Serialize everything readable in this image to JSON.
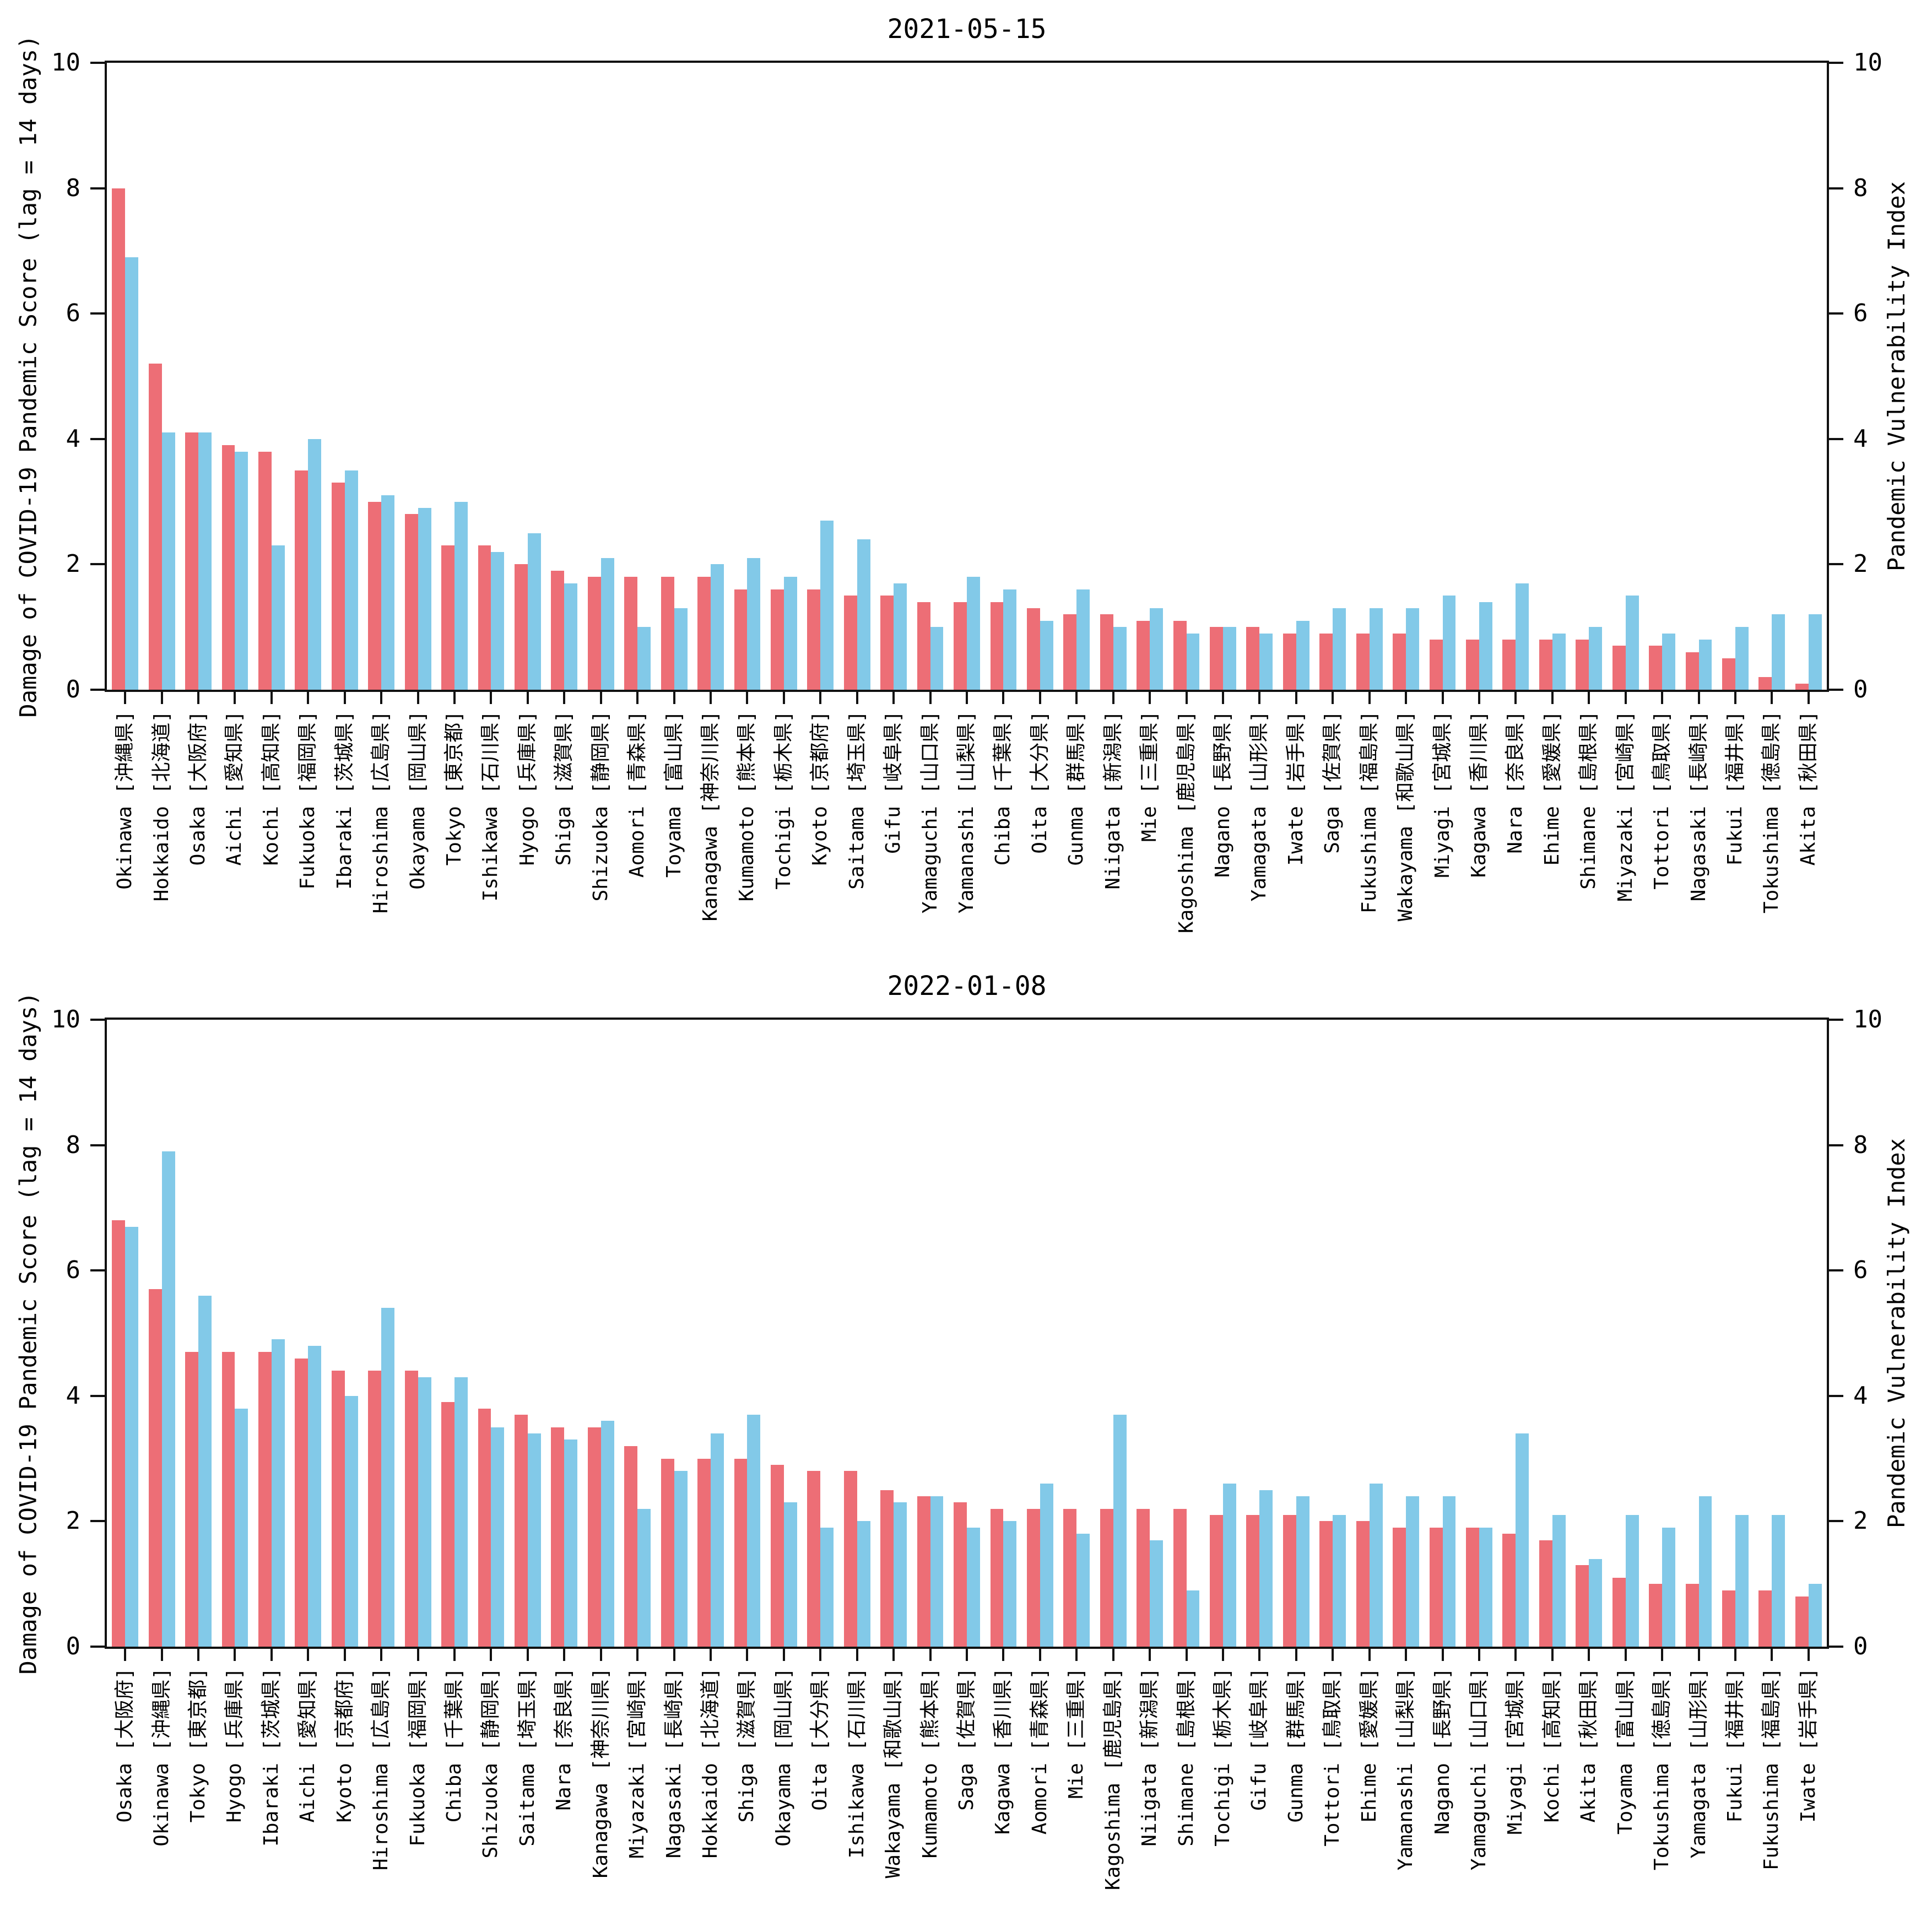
{
  "chart_data": [
    {
      "type": "bar",
      "title": "2021-05-15",
      "ylabel_left": "Damage of COVID-19 Pandemic Score (lag = 14 days)",
      "ylabel_right": "Pandemic Vulnerability Index",
      "ylim": [
        0,
        10
      ],
      "yticks": [
        0,
        2,
        4,
        6,
        8,
        10
      ],
      "grid": false,
      "legend": "none",
      "categories": [
        "Okinawa [沖縄県]",
        "Hokkaido [北海道]",
        "Osaka [大阪府]",
        "Aichi [愛知県]",
        "Kochi [高知県]",
        "Fukuoka [福岡県]",
        "Ibaraki [茨城県]",
        "Hiroshima [広島県]",
        "Okayama [岡山県]",
        "Tokyo [東京都]",
        "Ishikawa [石川県]",
        "Hyogo [兵庫県]",
        "Shiga [滋賀県]",
        "Shizuoka [静岡県]",
        "Aomori [青森県]",
        "Toyama [富山県]",
        "Kanagawa [神奈川県]",
        "Kumamoto [熊本県]",
        "Tochigi [栃木県]",
        "Kyoto [京都府]",
        "Saitama [埼玉県]",
        "Gifu [岐阜県]",
        "Yamaguchi [山口県]",
        "Yamanashi [山梨県]",
        "Chiba [千葉県]",
        "Oita [大分県]",
        "Gunma [群馬県]",
        "Niigata [新潟県]",
        "Mie [三重県]",
        "Kagoshima [鹿児島県]",
        "Nagano [長野県]",
        "Yamagata [山形県]",
        "Iwate [岩手県]",
        "Saga [佐賀県]",
        "Fukushima [福島県]",
        "Wakayama [和歌山県]",
        "Miyagi [宮城県]",
        "Kagawa [香川県]",
        "Nara [奈良県]",
        "Ehime [愛媛県]",
        "Shimane [島根県]",
        "Miyazaki [宮崎県]",
        "Tottori [鳥取県]",
        "Nagasaki [長崎県]",
        "Fukui [福井県]",
        "Tokushima [徳島県]",
        "Akita [秋田県]"
      ],
      "series": [
        {
          "name": "damage-score",
          "color": "#ed6e76",
          "values": [
            8.0,
            5.2,
            4.1,
            3.9,
            3.8,
            3.5,
            3.3,
            3.0,
            2.8,
            2.3,
            2.3,
            2.0,
            1.9,
            1.8,
            1.8,
            1.8,
            1.8,
            1.6,
            1.6,
            1.6,
            1.5,
            1.5,
            1.4,
            1.4,
            1.4,
            1.3,
            1.2,
            1.2,
            1.1,
            1.1,
            1.0,
            1.0,
            0.9,
            0.9,
            0.9,
            0.9,
            0.8,
            0.8,
            0.8,
            0.8,
            0.8,
            0.7,
            0.7,
            0.6,
            0.5,
            0.2,
            0.1
          ]
        },
        {
          "name": "vulnerability-index",
          "color": "#82c9e8",
          "values": [
            6.9,
            4.1,
            4.1,
            3.8,
            2.3,
            4.0,
            3.5,
            3.1,
            2.9,
            3.0,
            2.2,
            2.5,
            1.7,
            2.1,
            1.0,
            1.3,
            2.0,
            2.1,
            1.8,
            2.7,
            2.4,
            1.7,
            1.0,
            1.8,
            1.6,
            1.1,
            1.6,
            1.0,
            1.3,
            0.9,
            1.0,
            0.9,
            1.1,
            1.3,
            1.3,
            1.3,
            1.5,
            1.4,
            1.7,
            0.9,
            1.0,
            1.5,
            0.9,
            0.8,
            1.0,
            1.2,
            1.2
          ]
        }
      ]
    },
    {
      "type": "bar",
      "title": "2022-01-08",
      "ylabel_left": "Damage of COVID-19 Pandemic Score (lag = 14 days)",
      "ylabel_right": "Pandemic Vulnerability Index",
      "ylim": [
        0,
        10
      ],
      "yticks": [
        0,
        2,
        4,
        6,
        8,
        10
      ],
      "grid": false,
      "legend": "none",
      "categories": [
        "Osaka [大阪府]",
        "Okinawa [沖縄県]",
        "Tokyo [東京都]",
        "Hyogo [兵庫県]",
        "Ibaraki [茨城県]",
        "Aichi [愛知県]",
        "Kyoto [京都府]",
        "Hiroshima [広島県]",
        "Fukuoka [福岡県]",
        "Chiba [千葉県]",
        "Shizuoka [静岡県]",
        "Saitama [埼玉県]",
        "Nara [奈良県]",
        "Kanagawa [神奈川県]",
        "Miyazaki [宮崎県]",
        "Nagasaki [長崎県]",
        "Hokkaido [北海道]",
        "Shiga [滋賀県]",
        "Okayama [岡山県]",
        "Oita [大分県]",
        "Ishikawa [石川県]",
        "Wakayama [和歌山県]",
        "Kumamoto [熊本県]",
        "Saga [佐賀県]",
        "Kagawa [香川県]",
        "Aomori [青森県]",
        "Mie [三重県]",
        "Kagoshima [鹿児島県]",
        "Niigata [新潟県]",
        "Shimane [島根県]",
        "Tochigi [栃木県]",
        "Gifu [岐阜県]",
        "Gunma [群馬県]",
        "Tottori [鳥取県]",
        "Ehime [愛媛県]",
        "Yamanashi [山梨県]",
        "Nagano [長野県]",
        "Yamaguchi [山口県]",
        "Miyagi [宮城県]",
        "Kochi [高知県]",
        "Akita [秋田県]",
        "Toyama [富山県]",
        "Tokushima [徳島県]",
        "Yamagata [山形県]",
        "Fukui [福井県]",
        "Fukushima [福島県]",
        "Iwate [岩手県]"
      ],
      "series": [
        {
          "name": "damage-score",
          "color": "#ed6e76",
          "values": [
            6.8,
            5.7,
            4.7,
            4.7,
            4.7,
            4.6,
            4.4,
            4.4,
            4.4,
            3.9,
            3.8,
            3.7,
            3.5,
            3.5,
            3.2,
            3.0,
            3.0,
            3.0,
            2.9,
            2.8,
            2.8,
            2.5,
            2.4,
            2.3,
            2.2,
            2.2,
            2.2,
            2.2,
            2.2,
            2.2,
            2.1,
            2.1,
            2.1,
            2.0,
            2.0,
            1.9,
            1.9,
            1.9,
            1.8,
            1.7,
            1.3,
            1.1,
            1.0,
            1.0,
            0.9,
            0.9,
            0.8
          ]
        },
        {
          "name": "vulnerability-index",
          "color": "#82c9e8",
          "values": [
            6.7,
            7.9,
            5.6,
            3.8,
            4.9,
            4.8,
            4.0,
            5.4,
            4.3,
            4.3,
            3.5,
            3.4,
            3.3,
            3.6,
            2.2,
            2.8,
            3.4,
            3.7,
            2.3,
            1.9,
            2.0,
            2.3,
            2.4,
            1.9,
            2.0,
            2.6,
            1.8,
            3.7,
            1.7,
            0.9,
            2.6,
            2.5,
            2.4,
            2.1,
            2.6,
            2.4,
            2.4,
            1.9,
            3.4,
            2.1,
            1.4,
            2.1,
            1.9,
            2.4,
            2.1,
            2.1,
            1.0
          ]
        }
      ]
    }
  ]
}
